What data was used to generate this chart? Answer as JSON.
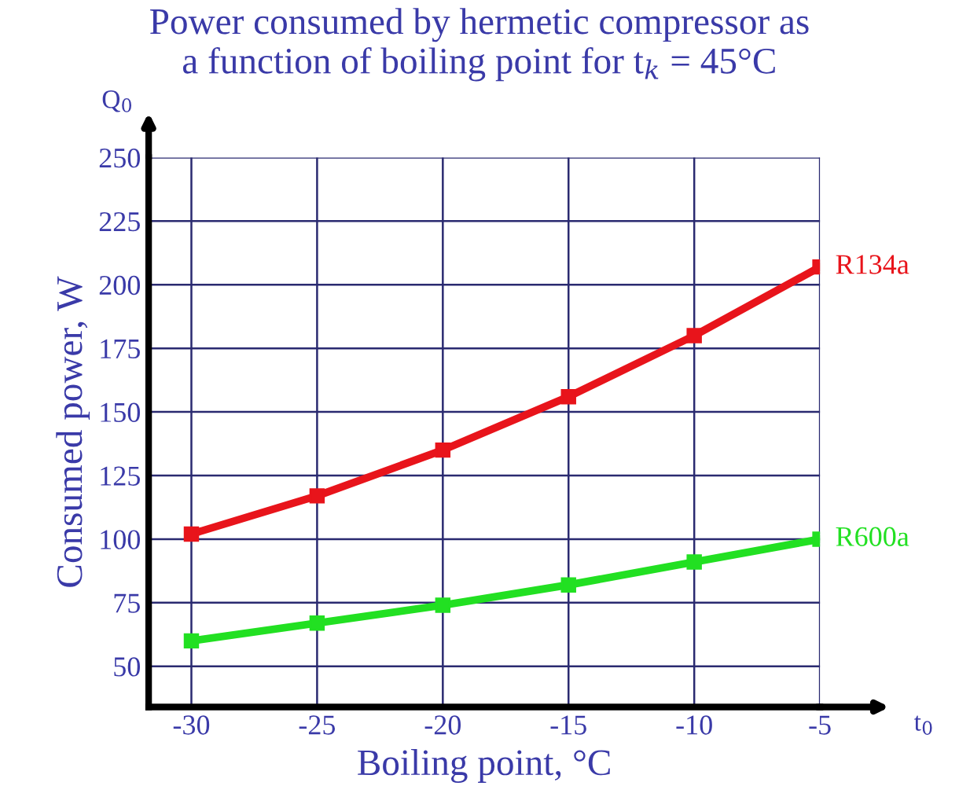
{
  "chart_data": {
    "type": "line",
    "title": "Power consumed by hermetic compressor as\na function of boiling point for t$_{k}$ = 45°C",
    "xlabel": "Boiling point, °C",
    "ylabel": "Consumed power, W",
    "x": [
      -30,
      -25,
      -20,
      -15,
      -10,
      -5
    ],
    "series": [
      {
        "name": "R134a",
        "color": "#e8141b",
        "values": [
          102,
          117,
          135,
          156,
          180,
          207
        ]
      },
      {
        "name": "R600a",
        "color": "#22e022",
        "values": [
          60,
          67,
          74,
          82,
          91,
          100
        ]
      }
    ],
    "annotations": [
      "Q$_{0}$",
      "t$_{0}$"
    ],
    "xlim": [
      -31.7,
      -5
    ],
    "ylim": [
      34,
      250
    ],
    "xticks": [
      -30,
      -25,
      -20,
      -15,
      -10,
      -5
    ],
    "yticks": [
      50,
      75,
      100,
      125,
      150,
      175,
      200,
      225,
      250
    ],
    "grid": true,
    "legend": false,
    "marker": "square",
    "line_style": "solid"
  }
}
